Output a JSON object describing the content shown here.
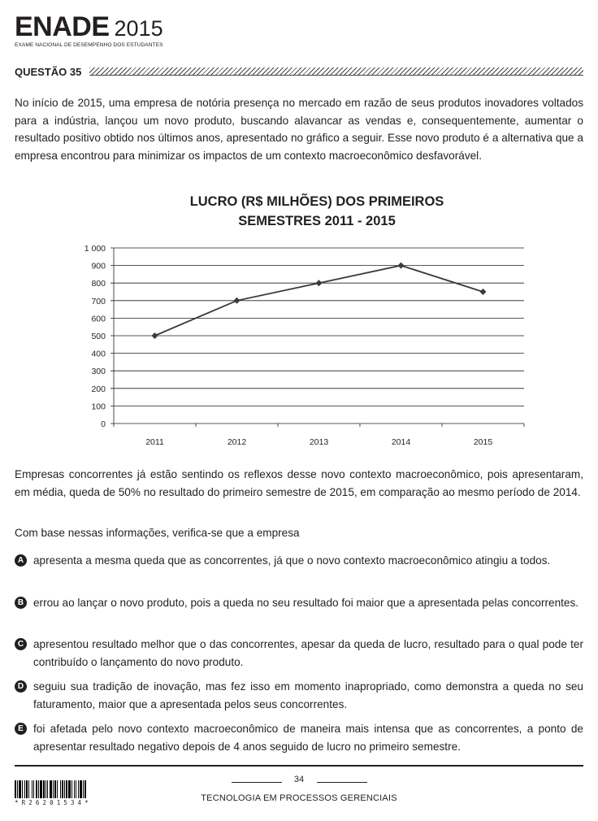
{
  "header": {
    "logo_word": "ENADE",
    "logo_year": "2015",
    "logo_subtitle": "EXAME NACIONAL DE DESEMPENHO DOS ESTUDANTES",
    "question_title": "QUESTÃO 35"
  },
  "intro_text": "No início de 2015, uma empresa de notória presença no mercado em razão de seus produtos inovadores voltados para a indústria, lançou um novo produto, buscando alavancar as vendas e, consequentemente, aumentar o resultado positivo obtido nos últimos anos, apresentado no gráfico a seguir. Esse novo produto é a alternativa que a empresa encontrou para minimizar os impactos de um contexto macroeconômico desfavorável.",
  "chart_data": {
    "type": "line",
    "title_line1": "LUCRO (R$ MILHÕES) DOS PRIMEIROS",
    "title_line2": "SEMESTRES 2011 - 2015",
    "x": [
      "2011",
      "2012",
      "2013",
      "2014",
      "2015"
    ],
    "values": [
      500,
      700,
      800,
      900,
      750
    ],
    "ylim": [
      0,
      1000
    ],
    "yticks": [
      0,
      100,
      200,
      300,
      400,
      500,
      600,
      700,
      800,
      900,
      1000
    ],
    "ytick_labels": [
      "0",
      "100",
      "200",
      "300",
      "400",
      "500",
      "600",
      "700",
      "800",
      "900",
      "1 000"
    ],
    "grid": true,
    "marker": "diamond",
    "line_color": "#3a3a3a"
  },
  "context_text": "Empresas concorrentes já estão sentindo os reflexos desse novo contexto macroeconômico, pois apresentaram, em média, queda de 50% no resultado do primeiro semestre de 2015, em comparação ao mesmo período de 2014.",
  "prompt_text": "Com base nessas informações, verifica-se que a empresa",
  "options": [
    {
      "letter": "A",
      "text": "apresenta a mesma queda que as concorrentes, já que o novo contexto macroeconômico atingiu a todos."
    },
    {
      "letter": "B",
      "text": "errou ao lançar o novo produto, pois a queda no seu resultado foi maior que a apresentada pelas concorrentes."
    },
    {
      "letter": "C",
      "text": "apresentou resultado melhor que o das concorrentes, apesar da queda de lucro, resultado para o qual pode ter contribuído o lançamento do novo produto."
    },
    {
      "letter": "D",
      "text": "seguiu sua tradição de inovação, mas fez isso em momento inapropriado, como demonstra a queda no seu faturamento, maior que a apresentada pelos seus concorrentes."
    },
    {
      "letter": "E",
      "text": "foi afetada pelo novo contexto macroeconômico de maneira mais intensa que as concorrentes, a ponto de apresentar resultado negativo depois de 4 anos seguido de lucro no primeiro semestre."
    }
  ],
  "footer": {
    "page_number": "34",
    "course": "TECNOLOGIA EM PROCESSOS GERENCIAIS",
    "barcode_text": "*R26201534*"
  }
}
